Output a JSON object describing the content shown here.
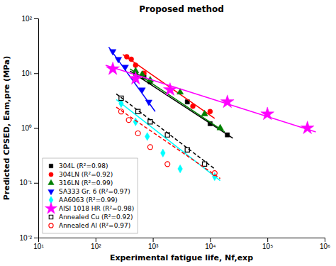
{
  "chart_data": {
    "type": "scatter",
    "title": "Proposed method",
    "xlabel": "Experimental fatigue life, Nf,exp",
    "ylabel": "Predicted CPSED, Eam,pre (MPa)",
    "log": true,
    "grid": false,
    "legend": "lower left",
    "xlim": [
      10,
      1000000
    ],
    "ylim": [
      0.01,
      100
    ],
    "xticks": [
      {
        "value": 10,
        "label": "10¹"
      },
      {
        "value": 100,
        "label": "10²"
      },
      {
        "value": 1000,
        "label": "10³"
      },
      {
        "value": 10000,
        "label": "10⁴"
      },
      {
        "value": 100000,
        "label": "10⁵"
      },
      {
        "value": 1000000,
        "label": "10⁶"
      }
    ],
    "yticks": [
      {
        "value": 0.01,
        "label": "10⁻²"
      },
      {
        "value": 0.1,
        "label": "10⁻¹"
      },
      {
        "value": 1,
        "label": "10⁰"
      },
      {
        "value": 10,
        "label": "10¹"
      },
      {
        "value": 100,
        "label": "10²"
      }
    ],
    "series": [
      {
        "type": "line",
        "color": "black",
        "line_style": "solid",
        "x": [
          400,
          25000
        ],
        "values": [
          11.0,
          0.65
        ]
      },
      {
        "type": "scatter",
        "name": "304L (R²=0.98)",
        "color": "black",
        "marker": "square",
        "x": [
          500,
          700,
          900,
          4000,
          10000,
          20000
        ],
        "values": [
          10.0,
          8.5,
          7.0,
          3.0,
          1.2,
          0.75
        ]
      },
      {
        "type": "line",
        "color": "red",
        "line_style": "solid",
        "x": [
          300,
          12000
        ],
        "values": [
          22.0,
          1.5
        ]
      },
      {
        "type": "scatter",
        "name": "304LN (R²=0.92)",
        "color": "red",
        "marker": "circle",
        "x": [
          350,
          420,
          500,
          700,
          5000,
          10000
        ],
        "values": [
          20.0,
          18.0,
          14.0,
          10.0,
          2.5,
          2.0
        ]
      },
      {
        "type": "line",
        "color": "green",
        "line_style": "solid",
        "x": [
          400,
          18000
        ],
        "values": [
          12.0,
          0.85
        ]
      },
      {
        "type": "scatter",
        "name": "316LN (R²=0.99)",
        "color": "green",
        "marker": "triangle-up",
        "x": [
          500,
          650,
          900,
          3000,
          8000,
          15000
        ],
        "values": [
          11.0,
          9.5,
          7.5,
          4.5,
          1.8,
          1.0
        ]
      },
      {
        "type": "line",
        "color": "blue",
        "line_style": "solid",
        "x": [
          170,
          1100
        ],
        "values": [
          30.0,
          2.0
        ]
      },
      {
        "type": "scatter",
        "name": "SA333 Gr. 6 (R²=0.97)",
        "color": "blue",
        "marker": "triangle-down",
        "x": [
          200,
          250,
          330,
          500,
          650,
          850
        ],
        "values": [
          25.0,
          18.0,
          13.0,
          8.0,
          5.0,
          3.0
        ]
      },
      {
        "type": "line",
        "color": "cyan",
        "line_style": "solid",
        "x": [
          230,
          15000
        ],
        "values": [
          3.3,
          0.11
        ]
      },
      {
        "type": "scatter",
        "name": "AA6063 (R²=0.99)",
        "color": "cyan",
        "marker": "diamond",
        "x": [
          280,
          500,
          800,
          1500,
          3000,
          12000
        ],
        "values": [
          2.8,
          1.3,
          0.7,
          0.35,
          0.18,
          0.13
        ]
      },
      {
        "type": "line",
        "color": "magenta",
        "line_style": "solid",
        "x": [
          150,
          700000
        ],
        "values": [
          14.0,
          0.85
        ]
      },
      {
        "type": "scatter",
        "name": "AISI 1018 HR (R²=0.98)",
        "color": "magenta",
        "marker": "star",
        "x": [
          200,
          500,
          2000,
          20000,
          100000,
          500000
        ],
        "values": [
          12.0,
          8.0,
          5.0,
          3.0,
          1.8,
          1.0
        ]
      },
      {
        "type": "line",
        "color": "black",
        "line_style": "dashed",
        "x": [
          230,
          12000
        ],
        "values": [
          4.2,
          0.18
        ]
      },
      {
        "type": "scatter",
        "name": "Annealed Cu (R²=0.92)",
        "color": "black",
        "marker": "square-open",
        "x": [
          280,
          550,
          900,
          1800,
          4000,
          8000
        ],
        "values": [
          3.5,
          2.0,
          1.3,
          0.75,
          0.4,
          0.22
        ]
      },
      {
        "type": "line",
        "color": "red",
        "line_style": "dashed",
        "x": [
          230,
          15000
        ],
        "values": [
          2.4,
          0.12
        ]
      },
      {
        "type": "scatter",
        "name": "Annealed Al (R²=0.97)",
        "color": "red",
        "marker": "circle-open",
        "x": [
          280,
          380,
          550,
          900,
          1800,
          12000
        ],
        "values": [
          2.0,
          1.4,
          0.8,
          0.45,
          0.22,
          0.15
        ]
      }
    ]
  }
}
